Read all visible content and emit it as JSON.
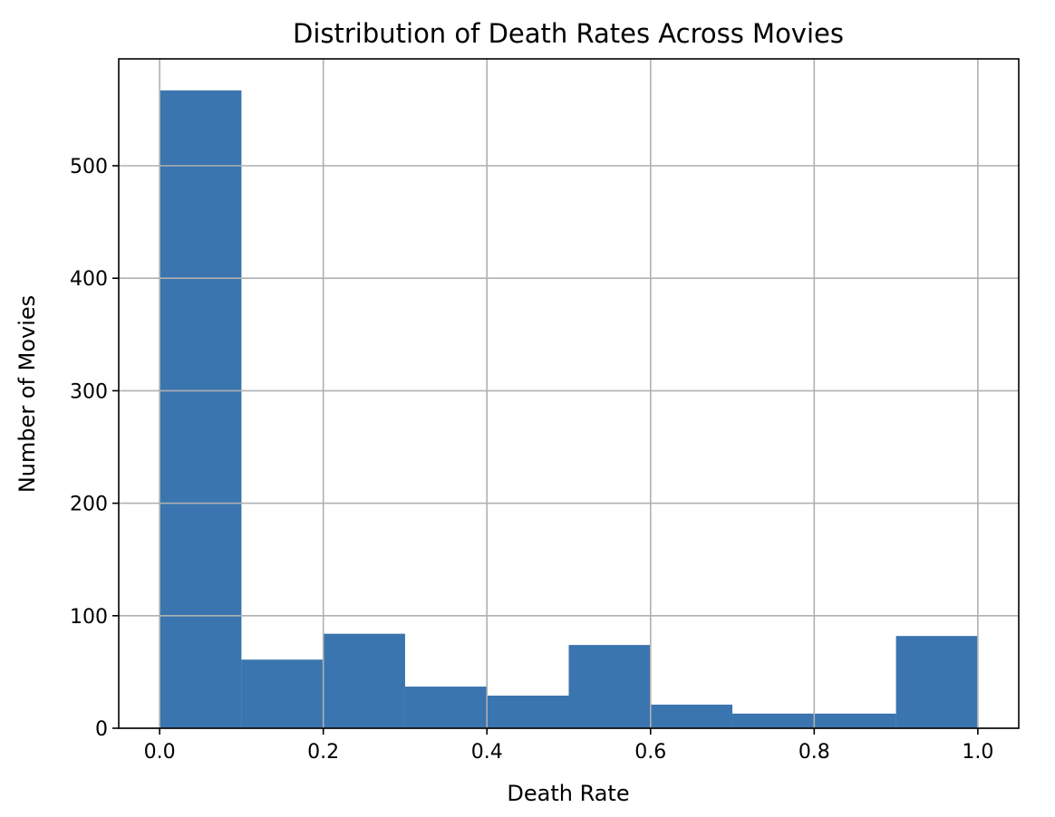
{
  "chart_data": {
    "type": "bar",
    "title": "Distribution of Death Rates Across Movies",
    "xlabel": "Death Rate",
    "ylabel": "Number of Movies",
    "bin_edges": [
      0.0,
      0.1,
      0.2,
      0.3,
      0.4,
      0.5,
      0.6,
      0.7,
      0.8,
      0.9,
      1.0
    ],
    "values": [
      567,
      61,
      84,
      37,
      29,
      74,
      21,
      13,
      13,
      82
    ],
    "xlim": [
      -0.05,
      1.05
    ],
    "ylim": [
      0,
      595
    ],
    "xticks": [
      0.0,
      0.2,
      0.4,
      0.6,
      0.8,
      1.0
    ],
    "xtick_labels": [
      "0.0",
      "0.2",
      "0.4",
      "0.6",
      "0.8",
      "1.0"
    ],
    "yticks": [
      0,
      100,
      200,
      300,
      400,
      500
    ],
    "ytick_labels": [
      "0",
      "100",
      "200",
      "300",
      "400",
      "500"
    ],
    "grid": true,
    "bar_color": "#3a75af"
  }
}
